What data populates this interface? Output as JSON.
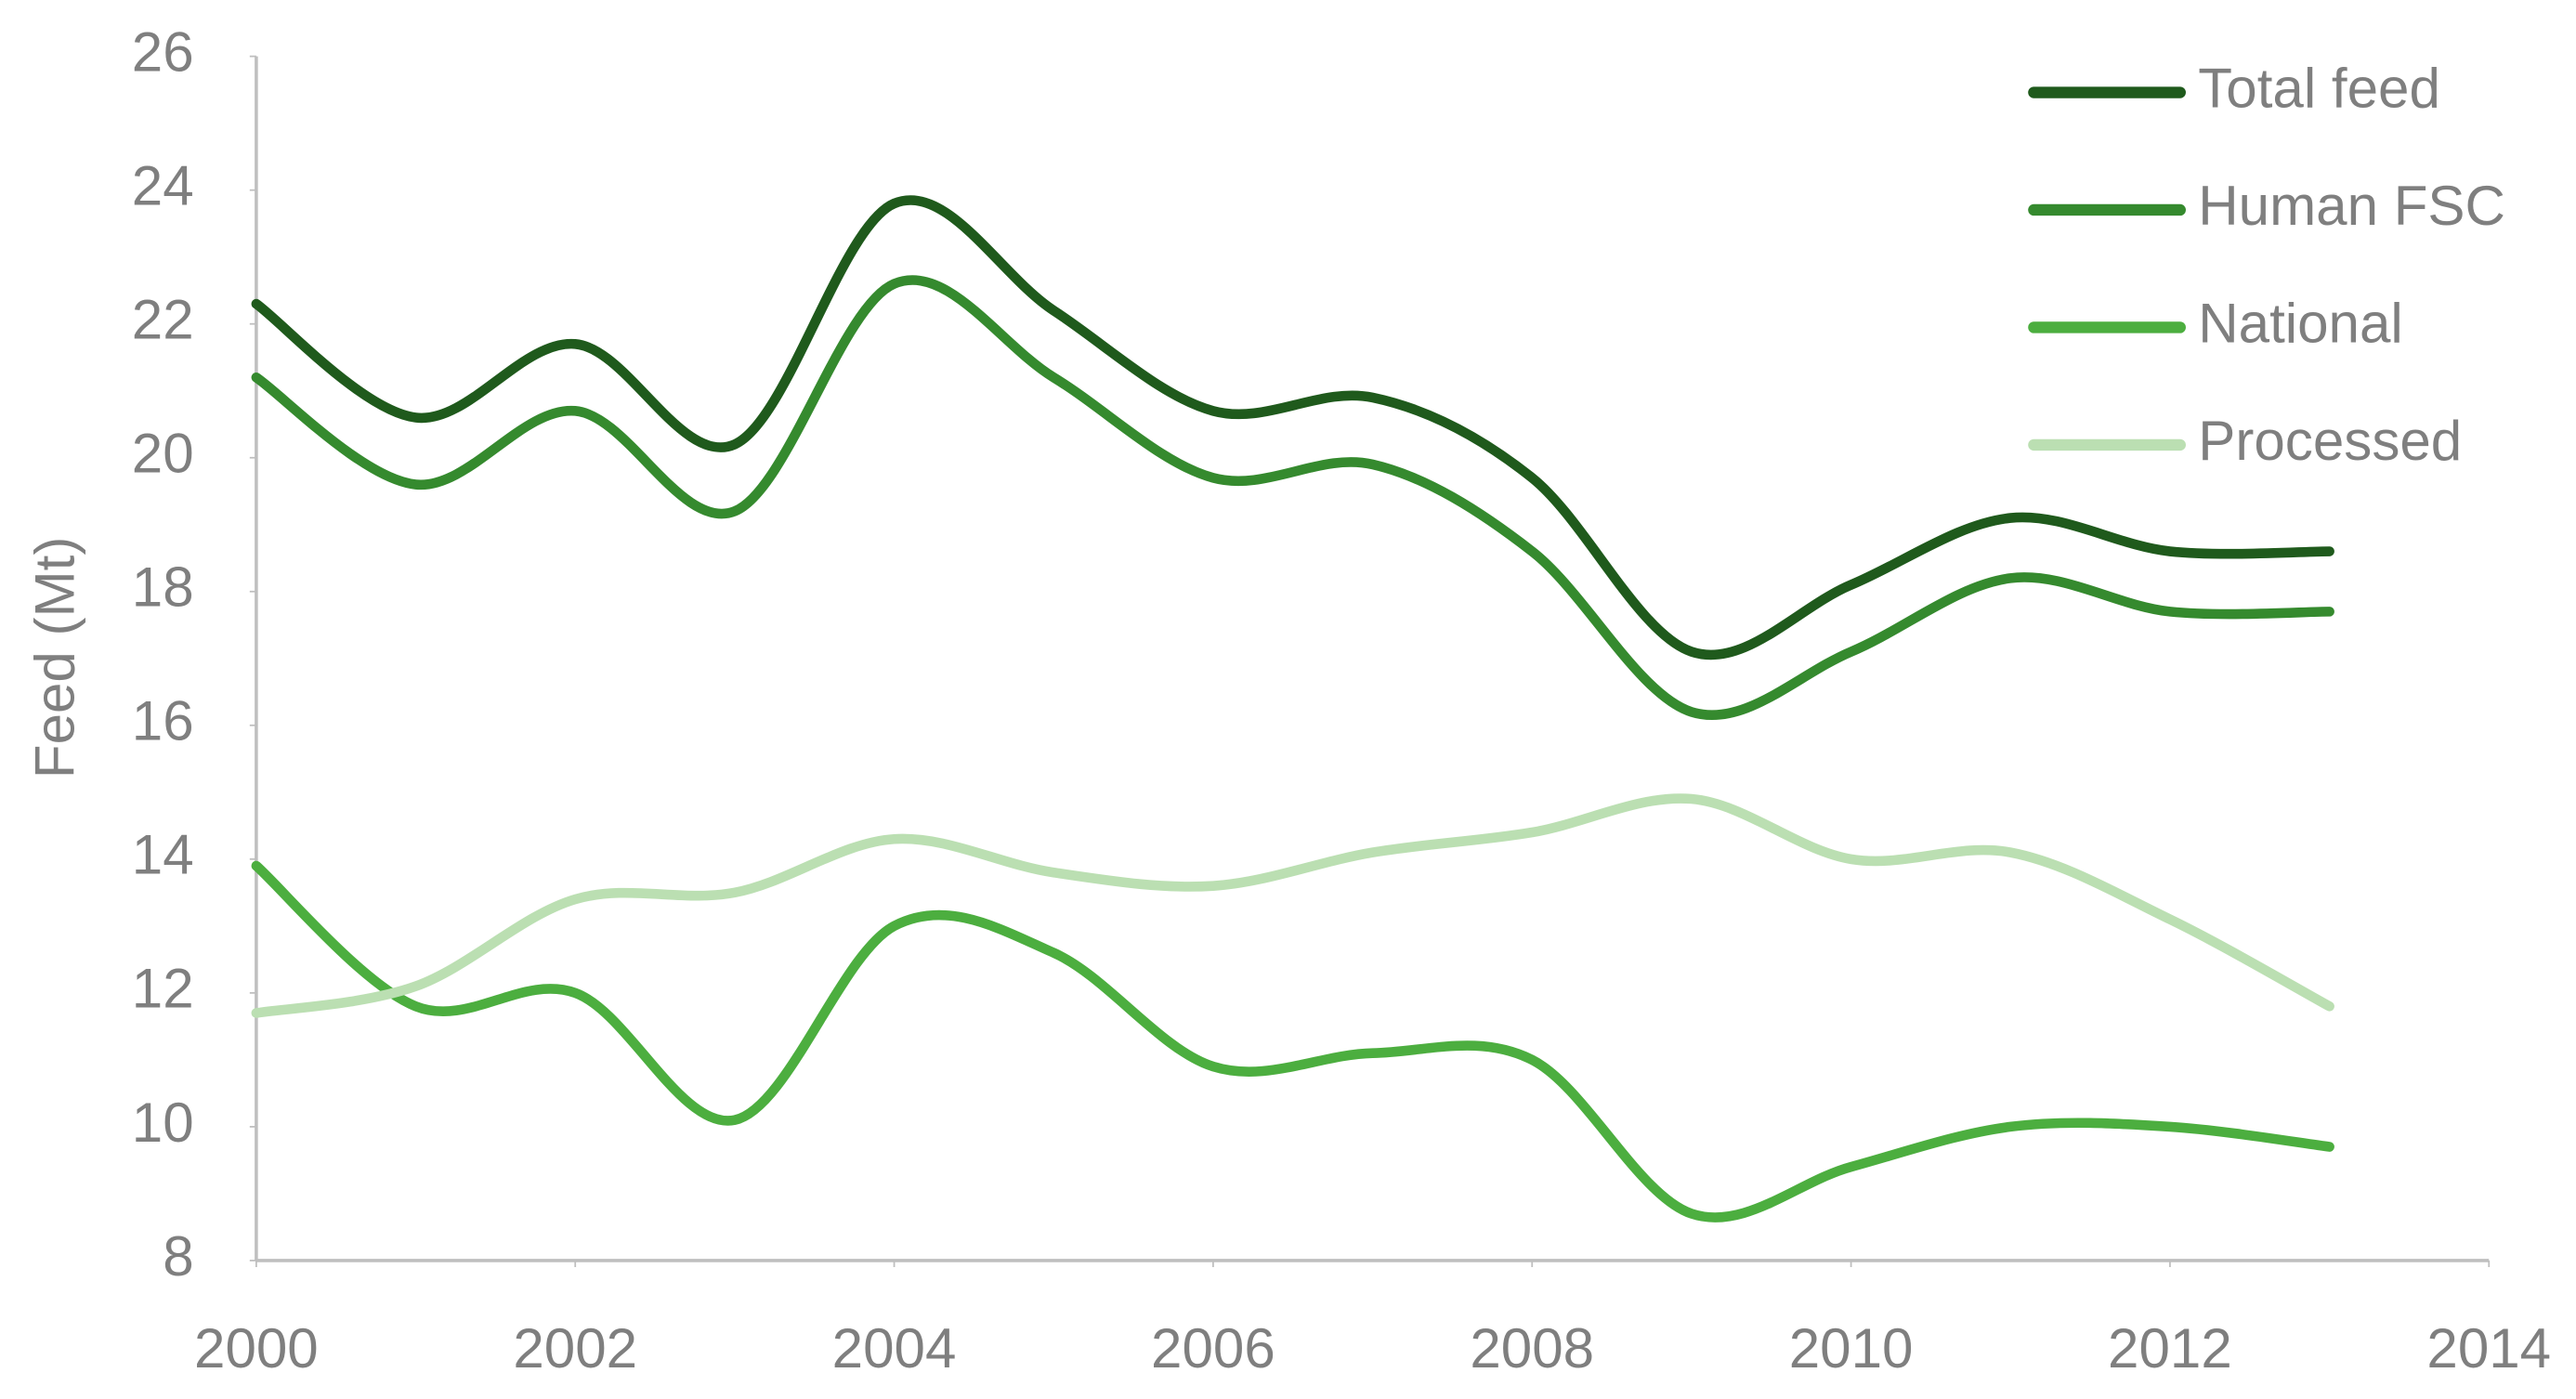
{
  "chart_data": {
    "type": "line",
    "y_label": "Feed (Mt)",
    "x": [
      2000,
      2001,
      2002,
      2003,
      2004,
      2005,
      2006,
      2007,
      2008,
      2009,
      2010,
      2011,
      2012,
      2013
    ],
    "series": [
      {
        "name": "Total feed",
        "color": "#1f5a1c",
        "values": [
          22.3,
          20.6,
          21.7,
          20.2,
          23.8,
          22.2,
          20.7,
          20.9,
          19.7,
          17.1,
          18.1,
          19.1,
          18.6,
          18.6
        ]
      },
      {
        "name": "Human FSC",
        "color": "#358a2e",
        "values": [
          21.2,
          19.6,
          20.7,
          19.2,
          22.6,
          21.2,
          19.7,
          19.9,
          18.6,
          16.2,
          17.1,
          18.2,
          17.7,
          17.7
        ]
      },
      {
        "name": "National",
        "color": "#4cae3f",
        "values": [
          13.9,
          11.8,
          12.0,
          10.1,
          13.0,
          12.6,
          10.9,
          11.1,
          11.0,
          8.7,
          9.4,
          10.0,
          10.0,
          9.7
        ]
      },
      {
        "name": "Processed",
        "color": "#bbdfb2",
        "values": [
          11.7,
          12.1,
          13.4,
          13.5,
          14.3,
          13.8,
          13.6,
          14.1,
          14.4,
          14.9,
          14.0,
          14.1,
          13.1,
          11.8
        ]
      }
    ],
    "xlim": [
      2000,
      2014
    ],
    "xticks": [
      2000,
      2002,
      2004,
      2006,
      2008,
      2010,
      2012,
      2014
    ],
    "ylim": [
      8,
      26
    ],
    "yticks": [
      8,
      10,
      12,
      14,
      16,
      18,
      20,
      22,
      24,
      26
    ],
    "grid": false,
    "legend": "upper right",
    "smooth": true
  }
}
